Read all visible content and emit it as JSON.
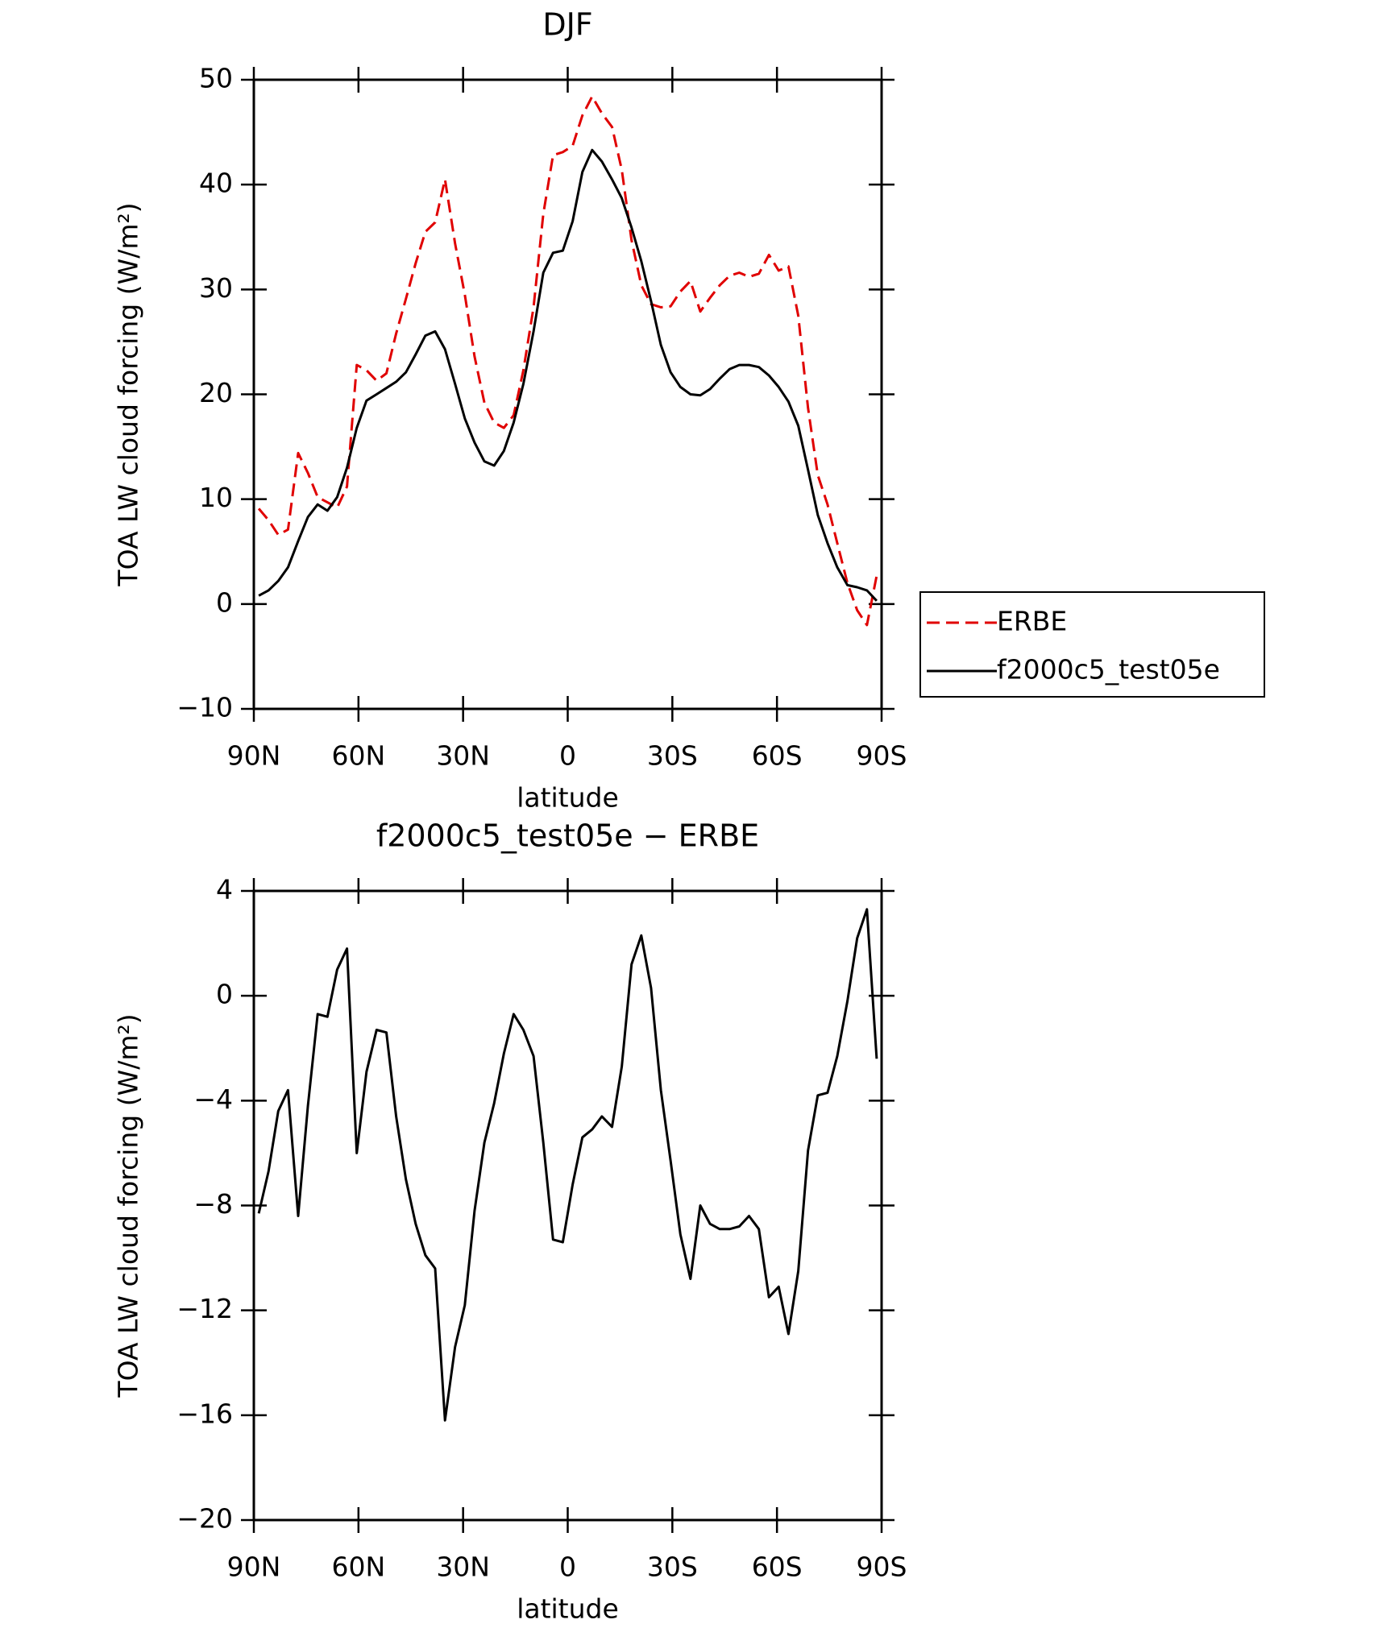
{
  "chart_data": [
    {
      "type": "line",
      "title": "DJF",
      "xlabel": "latitude",
      "ylabel": "TOA LW cloud forcing (W/m²)",
      "x": [
        88.6,
        85.8,
        83.0,
        80.2,
        77.3,
        74.5,
        71.7,
        68.9,
        66.1,
        63.3,
        60.5,
        57.7,
        54.8,
        52.0,
        49.2,
        46.4,
        43.6,
        40.8,
        38.0,
        35.2,
        32.3,
        29.5,
        26.7,
        23.9,
        21.1,
        18.3,
        15.5,
        12.7,
        9.8,
        7.0,
        4.2,
        1.4,
        -1.4,
        -4.2,
        -7.0,
        -9.8,
        -12.7,
        -15.5,
        -18.3,
        -21.1,
        -23.9,
        -26.7,
        -29.5,
        -32.3,
        -35.2,
        -38.0,
        -40.8,
        -43.6,
        -46.4,
        -49.2,
        -52.0,
        -54.8,
        -57.7,
        -60.5,
        -63.3,
        -66.1,
        -68.9,
        -71.7,
        -74.5,
        -77.3,
        -80.2,
        -83.0,
        -85.8,
        -88.6
      ],
      "series": [
        {
          "name": "ERBE",
          "color": "#e00000",
          "dashed": true,
          "values": [
            9.1,
            8.0,
            6.6,
            7.1,
            14.4,
            12.5,
            10.2,
            9.7,
            9.2,
            11.2,
            22.8,
            22.3,
            21.3,
            22.0,
            25.8,
            29.1,
            32.5,
            35.5,
            36.4,
            40.5,
            34.4,
            29.5,
            23.6,
            19.2,
            17.3,
            16.8,
            18.0,
            22.3,
            28.3,
            37.2,
            42.8,
            43.1,
            43.7,
            46.6,
            48.4,
            46.8,
            45.5,
            41.4,
            34.7,
            30.4,
            28.6,
            28.3,
            28.4,
            29.8,
            30.8,
            27.9,
            29.2,
            30.4,
            31.3,
            31.6,
            31.2,
            31.5,
            33.3,
            31.8,
            32.2,
            27.5,
            18.7,
            12.3,
            9.5,
            5.8,
            2.0,
            -0.6,
            -2.0,
            2.7
          ]
        },
        {
          "name": "f2000c5_test05e",
          "color": "#000000",
          "dashed": false,
          "values": [
            0.8,
            1.3,
            2.2,
            3.5,
            6.0,
            8.3,
            9.5,
            8.9,
            10.2,
            13.0,
            16.8,
            19.4,
            20.0,
            20.6,
            21.2,
            22.1,
            23.8,
            25.6,
            26.0,
            24.3,
            21.0,
            17.7,
            15.4,
            13.6,
            13.2,
            14.6,
            17.3,
            21.0,
            26.0,
            31.6,
            33.5,
            33.7,
            36.5,
            41.2,
            43.3,
            42.2,
            40.5,
            38.7,
            35.9,
            32.7,
            28.9,
            24.7,
            22.1,
            20.7,
            20.0,
            19.9,
            20.5,
            21.5,
            22.4,
            22.8,
            22.8,
            22.6,
            21.8,
            20.7,
            19.3,
            17.0,
            12.8,
            8.5,
            5.8,
            3.5,
            1.8,
            1.6,
            1.3,
            0.3
          ]
        }
      ],
      "xlim": [
        90,
        -90
      ],
      "xticks": [
        {
          "value": 90,
          "label": "90N"
        },
        {
          "value": 60,
          "label": "60N"
        },
        {
          "value": 30,
          "label": "30N"
        },
        0,
        {
          "value": -30,
          "label": "30S"
        },
        {
          "value": -60,
          "label": "60S"
        },
        {
          "value": -90,
          "label": "90S"
        }
      ],
      "ylim": [
        -10,
        50
      ],
      "yticks": [
        {
          "value": -10,
          "label": "−10"
        },
        0,
        10,
        20,
        30,
        40,
        50
      ],
      "legend": "outside-right"
    },
    {
      "type": "line",
      "title": "f2000c5_test05e − ERBE",
      "xlabel": "latitude",
      "ylabel": "TOA LW cloud forcing (W/m²)",
      "x": [
        88.6,
        85.8,
        83.0,
        80.2,
        77.3,
        74.5,
        71.7,
        68.9,
        66.1,
        63.3,
        60.5,
        57.7,
        54.8,
        52.0,
        49.2,
        46.4,
        43.6,
        40.8,
        38.0,
        35.2,
        32.3,
        29.5,
        26.7,
        23.9,
        21.1,
        18.3,
        15.5,
        12.7,
        9.8,
        7.0,
        4.2,
        1.4,
        -1.4,
        -4.2,
        -7.0,
        -9.8,
        -12.7,
        -15.5,
        -18.3,
        -21.1,
        -23.9,
        -26.7,
        -29.5,
        -32.3,
        -35.2,
        -38.0,
        -40.8,
        -43.6,
        -46.4,
        -49.2,
        -52.0,
        -54.8,
        -57.7,
        -60.5,
        -63.3,
        -66.1,
        -68.9,
        -71.7,
        -74.5,
        -77.3,
        -80.2,
        -83.0,
        -85.8,
        -88.6
      ],
      "series": [
        {
          "color": "#000000",
          "dashed": false,
          "values": [
            -8.3,
            -6.7,
            -4.4,
            -3.6,
            -8.4,
            -4.2,
            -0.7,
            -0.8,
            1.0,
            1.8,
            -6.0,
            -2.9,
            -1.3,
            -1.4,
            -4.6,
            -7.0,
            -8.7,
            -9.9,
            -10.4,
            -16.2,
            -13.4,
            -11.8,
            -8.2,
            -5.6,
            -4.1,
            -2.2,
            -0.7,
            -1.3,
            -2.3,
            -5.6,
            -9.3,
            -9.4,
            -7.2,
            -5.4,
            -5.1,
            -4.6,
            -5.0,
            -2.7,
            1.2,
            2.3,
            0.3,
            -3.6,
            -6.3,
            -9.1,
            -10.8,
            -8.0,
            -8.7,
            -8.9,
            -8.9,
            -8.8,
            -8.4,
            -8.9,
            -11.5,
            -11.1,
            -12.9,
            -10.5,
            -5.9,
            -3.8,
            -3.7,
            -2.3,
            -0.2,
            2.2,
            3.3,
            -2.4
          ]
        }
      ],
      "xlim": [
        90,
        -90
      ],
      "xticks": [
        {
          "value": 90,
          "label": "90N"
        },
        {
          "value": 60,
          "label": "60N"
        },
        {
          "value": 30,
          "label": "30N"
        },
        0,
        {
          "value": -30,
          "label": "30S"
        },
        {
          "value": -60,
          "label": "60S"
        },
        {
          "value": -90,
          "label": "90S"
        }
      ],
      "ylim": [
        -20,
        4
      ],
      "yticks": [
        {
          "value": -20,
          "label": "−20"
        },
        {
          "value": -16,
          "label": "−16"
        },
        {
          "value": -12,
          "label": "−12"
        },
        {
          "value": -8,
          "label": "−8"
        },
        {
          "value": -4,
          "label": "−4"
        },
        0,
        4
      ]
    }
  ]
}
